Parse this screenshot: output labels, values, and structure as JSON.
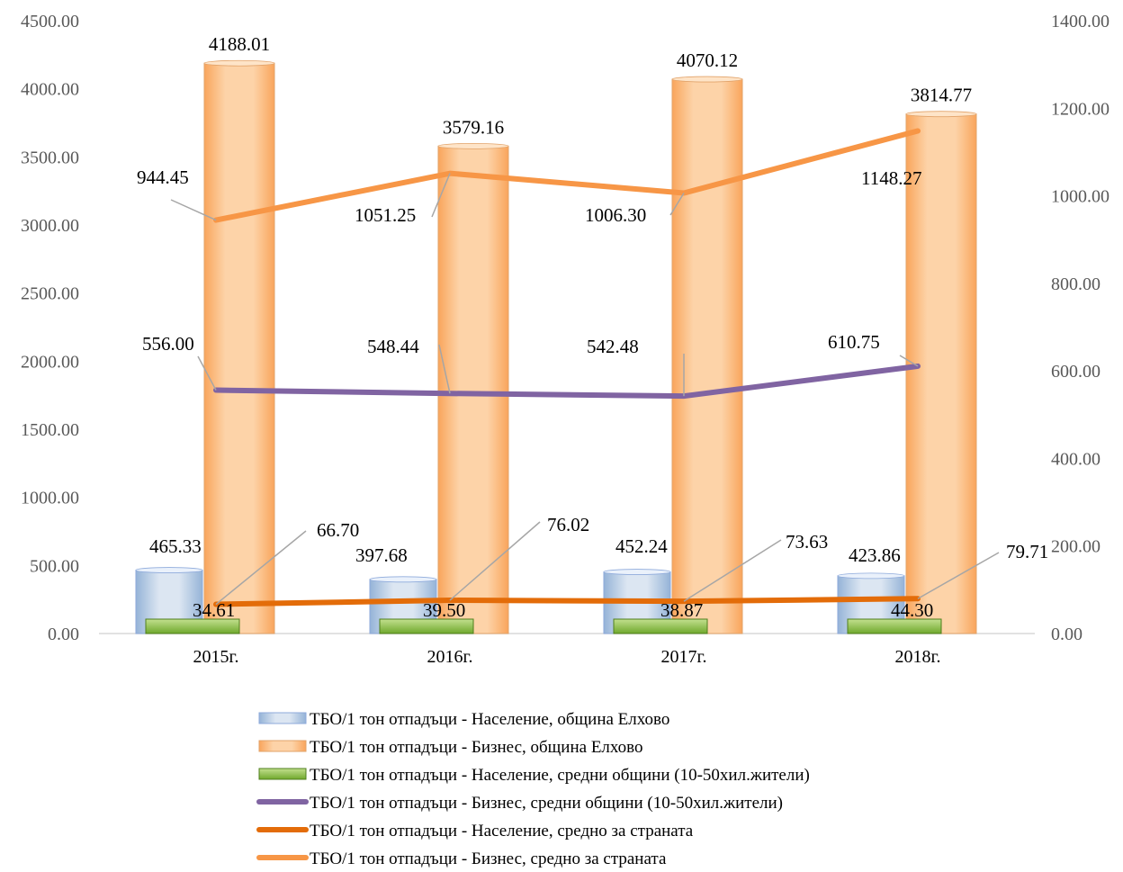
{
  "chart_data": {
    "type": "bar",
    "categories": [
      "2015г.",
      "2016г.",
      "2017г.",
      "2018г."
    ],
    "y_left": {
      "ylim": [
        0,
        4500
      ],
      "ticks": [
        "0.00",
        "500.00",
        "1000.00",
        "1500.00",
        "2000.00",
        "2500.00",
        "3000.00",
        "3500.00",
        "4000.00",
        "4500.00"
      ]
    },
    "y_right": {
      "ylim": [
        0,
        1400
      ],
      "ticks": [
        "0.00",
        "200.00",
        "400.00",
        "600.00",
        "800.00",
        "1000.00",
        "1200.00",
        "1400.00"
      ]
    },
    "series": [
      {
        "name": "ТБО/1 тон отпадъци - Население, община Елхово",
        "kind": "bar",
        "axis": "left",
        "color": "#c5d9f1",
        "values": [
          465.33,
          397.68,
          452.24,
          423.86
        ],
        "labels": [
          "465.33",
          "397.68",
          "452.24",
          "423.86"
        ]
      },
      {
        "name": "ТБО/1 тон отпадъци - Бизнес, община Елхово",
        "kind": "bar",
        "axis": "left",
        "color": "#fcc894",
        "values": [
          4188.01,
          3579.16,
          4070.12,
          3814.77
        ],
        "labels": [
          "4188.01",
          "3579.16",
          "4070.12",
          "3814.77"
        ]
      },
      {
        "name": "ТБО/1 тон отпадъци - Население, средни общини (10-50хил.жители)",
        "kind": "bar",
        "axis": "left",
        "color": "#92d050",
        "values": [
          34.61,
          39.5,
          38.87,
          44.3
        ],
        "labels": [
          "34.61",
          "39.50",
          "38.87",
          "44.30"
        ]
      },
      {
        "name": "ТБО/1 тон отпадъци - Бизнес, средни общини (10-50хил.жители)",
        "kind": "line",
        "axis": "right",
        "color": "#8064a2",
        "values": [
          556.0,
          548.44,
          542.48,
          610.75
        ],
        "labels": [
          "556.00",
          "548.44",
          "542.48",
          "610.75"
        ]
      },
      {
        "name": "ТБО/1 тон отпадъци - Население, средно за страната",
        "kind": "line",
        "axis": "right",
        "color": "#e36c09",
        "values": [
          66.7,
          76.02,
          73.63,
          79.71
        ],
        "labels": [
          "66.70",
          "76.02",
          "73.63",
          "79.71"
        ]
      },
      {
        "name": "ТБО/1 тон отпадъци - Бизнес, средно за страната",
        "kind": "line",
        "axis": "right",
        "color": "#f79646",
        "values": [
          944.45,
          1051.25,
          1006.3,
          1148.27
        ],
        "labels": [
          "944.45",
          "1051.25",
          "1006.30",
          "1148.27"
        ]
      }
    ],
    "legend_position": "bottom",
    "grid": false
  }
}
